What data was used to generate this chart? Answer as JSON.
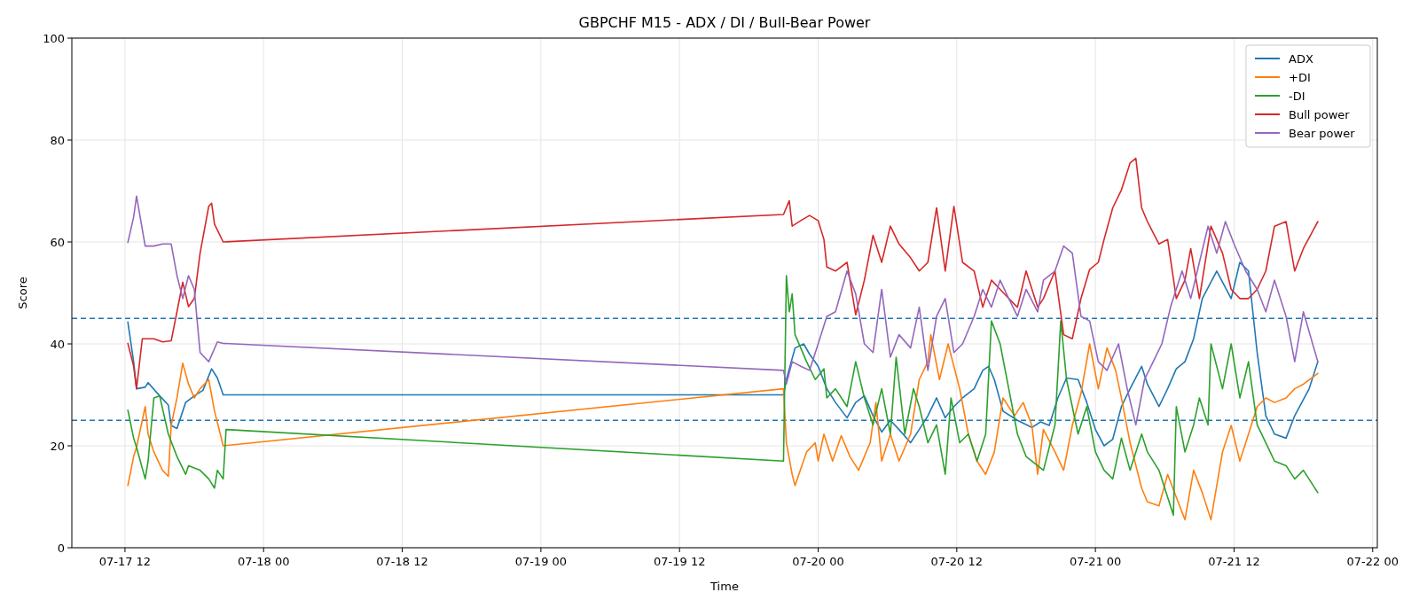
{
  "chart_data": {
    "type": "line",
    "title": "GBPCHF M15 - ADX / DI / Bull-Bear Power",
    "xlabel": "Time",
    "ylabel": "Score",
    "xlim": [
      "--07-17T07:24",
      "--07-22T00:24"
    ],
    "xticks": [
      {
        "value": "--07-17T12:00",
        "label": "07-17 12"
      },
      {
        "value": "--07-18T00:00",
        "label": "07-18 00"
      },
      {
        "value": "--07-18T12:00",
        "label": "07-18 12"
      },
      {
        "value": "--07-19T00:00",
        "label": "07-19 00"
      },
      {
        "value": "--07-19T12:00",
        "label": "07-19 12"
      },
      {
        "value": "--07-20T00:00",
        "label": "07-20 00"
      },
      {
        "value": "--07-20T12:00",
        "label": "07-20 12"
      },
      {
        "value": "--07-21T00:00",
        "label": "07-21 00"
      },
      {
        "value": "--07-21T12:00",
        "label": "07-21 12"
      },
      {
        "value": "--07-22T00:00",
        "label": "07-22 00"
      }
    ],
    "ylim": [
      0,
      100
    ],
    "yticks": [
      0,
      20,
      40,
      60,
      80,
      100
    ],
    "grid": true,
    "legend": "top right",
    "marker": "none",
    "line_style": "solid",
    "ref_lines": [
      {
        "axis": "y",
        "value": 45,
        "color": "#1f77b4",
        "line_style": "dashed"
      },
      {
        "axis": "y",
        "value": 25,
        "color": "#1f77b4",
        "line_style": "dashed"
      }
    ],
    "series": [
      {
        "name": "ADX",
        "color": "#1f77b4",
        "x": [
          "--07-17T12:15",
          "--07-17T12:45",
          "--07-17T13:00",
          "--07-17T13:45",
          "--07-17T14:00",
          "--07-17T15:00",
          "--07-17T15:45",
          "--07-17T16:00",
          "--07-17T16:30",
          "--07-17T17:15",
          "--07-17T18:00",
          "--07-17T18:45",
          "--07-17T19:30",
          "--07-17T20:00",
          "--07-17T20:30",
          "--07-19T21:00",
          "--07-19T21:15",
          "--07-19T22:00",
          "--07-19T22:45",
          "--07-19T23:15",
          "--07-20T00:00",
          "--07-20T00:45",
          "--07-20T01:30",
          "--07-20T02:30",
          "--07-20T03:15",
          "--07-20T04:00",
          "--07-20T04:45",
          "--07-20T05:30",
          "--07-20T06:15",
          "--07-20T07:00",
          "--07-20T08:00",
          "--07-20T08:45",
          "--07-20T09:30",
          "--07-20T10:15",
          "--07-20T11:00",
          "--07-20T11:45",
          "--07-20T12:30",
          "--07-20T13:30",
          "--07-20T14:15",
          "--07-20T14:45",
          "--07-20T15:15",
          "--07-20T16:00",
          "--07-20T17:15",
          "--07-20T18:30",
          "--07-20T19:15",
          "--07-20T20:00",
          "--07-20T20:45",
          "--07-20T21:30",
          "--07-20T22:30",
          "--07-20T23:15",
          "--07-21T00:00",
          "--07-21T00:45",
          "--07-21T01:30",
          "--07-21T02:15",
          "--07-21T03:00",
          "--07-21T04:00",
          "--07-21T04:30",
          "--07-21T05:30",
          "--07-21T06:15",
          "--07-21T07:00",
          "--07-21T07:45",
          "--07-21T08:30",
          "--07-21T09:15",
          "--07-21T10:30",
          "--07-21T11:45",
          "--07-21T12:30",
          "--07-21T13:15",
          "--07-21T14:00",
          "--07-21T14:45",
          "--07-21T15:30",
          "--07-21T16:30",
          "--07-21T17:15",
          "--07-21T18:30",
          "--07-21T19:15"
        ],
        "values": [
          44.3,
          36.5,
          31.2,
          31.5,
          32.4,
          29.8,
          28,
          24,
          23.4,
          28.5,
          29.8,
          30.9,
          35.1,
          33.3,
          30,
          30,
          33,
          39.2,
          40,
          38,
          35.6,
          31.2,
          28.5,
          25.5,
          28.5,
          29.8,
          25.9,
          22.7,
          25,
          23.2,
          20.6,
          23.2,
          25.9,
          29.4,
          25.5,
          27.7,
          29.4,
          31.2,
          34.8,
          35.6,
          33,
          26.8,
          25,
          23.6,
          24.7,
          24,
          29.4,
          33.3,
          33,
          28.5,
          23.2,
          20,
          21.3,
          27.7,
          31.2,
          35.6,
          32.1,
          27.7,
          31.2,
          35.1,
          36.5,
          41,
          48.9,
          54.3,
          48.9,
          56,
          54.3,
          38.3,
          25.9,
          22.3,
          21.5,
          25.9,
          31.2,
          36.5
        ]
      },
      {
        "name": "+DI",
        "color": "#ff7f0e",
        "x": [
          "--07-17T12:15",
          "--07-17T12:45",
          "--07-17T13:00",
          "--07-17T13:45",
          "--07-17T14:00",
          "--07-17T14:30",
          "--07-17T15:15",
          "--07-17T15:45",
          "--07-17T16:00",
          "--07-17T16:30",
          "--07-17T17:00",
          "--07-17T17:30",
          "--07-17T18:00",
          "--07-17T18:30",
          "--07-17T19:15",
          "--07-17T19:45",
          "--07-17T20:15",
          "--07-17T20:30",
          "--07-19T21:00",
          "--07-19T21:15",
          "--07-19T21:45",
          "--07-19T22:00",
          "--07-19T23:00",
          "--07-19T23:45",
          "--07-20T00:00",
          "--07-20T00:30",
          "--07-20T01:15",
          "--07-20T02:00",
          "--07-20T02:45",
          "--07-20T03:30",
          "--07-20T04:30",
          "--07-20T05:00",
          "--07-20T05:30",
          "--07-20T06:15",
          "--07-20T07:00",
          "--07-20T08:00",
          "--07-20T08:45",
          "--07-20T09:30",
          "--07-20T09:45",
          "--07-20T10:30",
          "--07-20T11:15",
          "--07-20T12:15",
          "--07-20T13:00",
          "--07-20T13:45",
          "--07-20T14:30",
          "--07-20T15:15",
          "--07-20T16:00",
          "--07-20T17:00",
          "--07-20T17:45",
          "--07-20T18:30",
          "--07-20T19:00",
          "--07-20T19:30",
          "--07-20T20:30",
          "--07-20T21:15",
          "--07-20T22:00",
          "--07-20T22:45",
          "--07-20T23:30",
          "--07-21T00:15",
          "--07-21T01:00",
          "--07-21T01:45",
          "--07-21T02:15",
          "--07-21T03:00",
          "--07-21T04:00",
          "--07-21T04:30",
          "--07-21T05:30",
          "--07-21T06:15",
          "--07-21T07:00",
          "--07-21T07:45",
          "--07-21T08:30",
          "--07-21T09:15",
          "--07-21T10:00",
          "--07-21T11:00",
          "--07-21T11:45",
          "--07-21T12:30",
          "--07-21T13:15",
          "--07-21T14:00",
          "--07-21T14:45",
          "--07-21T15:30",
          "--07-21T16:30",
          "--07-21T17:15",
          "--07-21T18:00",
          "--07-21T19:15"
        ],
        "values": [
          12.2,
          17.9,
          19.7,
          27.7,
          22.3,
          18.8,
          15.2,
          14,
          24,
          29.4,
          36.2,
          32.1,
          29.4,
          31.2,
          33,
          26.8,
          22.3,
          20,
          31.2,
          20.6,
          14.4,
          12.2,
          18.8,
          20.6,
          17,
          22.3,
          17,
          22,
          17.9,
          15.2,
          20.6,
          28.5,
          17,
          22.3,
          17,
          22.3,
          33,
          36.5,
          41.8,
          33,
          40,
          31.2,
          22.3,
          17,
          14.4,
          18.8,
          29.4,
          25.9,
          28.5,
          24,
          14.4,
          23.2,
          18.8,
          15.2,
          24,
          30.3,
          40,
          31.2,
          39.2,
          34.8,
          29.4,
          20.6,
          11.7,
          9,
          8.2,
          14.4,
          9.9,
          5.5,
          15.2,
          10.8,
          5.5,
          18.8,
          24,
          17,
          22.3,
          27.7,
          29.4,
          28.5,
          29.4,
          31.2,
          32.1,
          34.2
        ]
      },
      {
        "name": "-DI",
        "color": "#2ca02c",
        "x": [
          "--07-17T12:15",
          "--07-17T12:45",
          "--07-17T13:00",
          "--07-17T13:45",
          "--07-17T14:00",
          "--07-17T14:30",
          "--07-17T15:00",
          "--07-17T15:45",
          "--07-17T16:30",
          "--07-17T17:15",
          "--07-17T17:30",
          "--07-17T18:30",
          "--07-17T19:15",
          "--07-17T19:45",
          "--07-17T20:00",
          "--07-17T20:30",
          "--07-17T20:45",
          "--07-19T21:00",
          "--07-19T21:15",
          "--07-19T21:30",
          "--07-19T21:45",
          "--07-19T22:00",
          "--07-19T23:00",
          "--07-19T23:45",
          "--07-20T00:30",
          "--07-20T00:45",
          "--07-20T01:30",
          "--07-20T02:30",
          "--07-20T03:15",
          "--07-20T04:00",
          "--07-20T04:45",
          "--07-20T05:30",
          "--07-20T06:15",
          "--07-20T06:45",
          "--07-20T07:30",
          "--07-20T08:15",
          "--07-20T08:45",
          "--07-20T09:30",
          "--07-20T10:15",
          "--07-20T11:00",
          "--07-20T11:30",
          "--07-20T12:15",
          "--07-20T13:00",
          "--07-20T13:45",
          "--07-20T14:30",
          "--07-20T15:00",
          "--07-20T15:45",
          "--07-20T16:30",
          "--07-20T17:15",
          "--07-20T18:00",
          "--07-20T19:00",
          "--07-20T19:30",
          "--07-20T20:30",
          "--07-20T21:00",
          "--07-20T21:30",
          "--07-20T22:30",
          "--07-20T23:15",
          "--07-21T00:00",
          "--07-21T00:45",
          "--07-21T01:30",
          "--07-21T02:15",
          "--07-21T03:00",
          "--07-21T04:00",
          "--07-21T04:30",
          "--07-21T05:30",
          "--07-21T06:15",
          "--07-21T06:45",
          "--07-21T07:00",
          "--07-21T07:45",
          "--07-21T08:30",
          "--07-21T09:00",
          "--07-21T09:45",
          "--07-21T10:00",
          "--07-21T11:00",
          "--07-21T11:45",
          "--07-21T12:30",
          "--07-21T13:15",
          "--07-21T14:00",
          "--07-21T14:45",
          "--07-21T15:30",
          "--07-21T16:30",
          "--07-21T17:15",
          "--07-21T18:00",
          "--07-21T19:15"
        ],
        "values": [
          27,
          21.5,
          19.7,
          13.5,
          17,
          29.4,
          29.8,
          22.3,
          17.9,
          14.4,
          16.1,
          15.2,
          13.5,
          11.7,
          15.2,
          13.5,
          23.2,
          17,
          53.4,
          46.3,
          49.8,
          41.8,
          36.5,
          33,
          35.1,
          29.4,
          31.2,
          27.7,
          36.5,
          29.4,
          24.1,
          31.2,
          22.3,
          37.4,
          22.3,
          31.2,
          27.7,
          20.6,
          24.1,
          14.4,
          29.4,
          20.6,
          22.3,
          17,
          22.3,
          44.5,
          40,
          31.2,
          22.3,
          17.9,
          16.1,
          15.2,
          24.1,
          44.5,
          33,
          22.3,
          27.7,
          18.8,
          15.2,
          13.5,
          21.5,
          15.2,
          22.3,
          18.8,
          15.2,
          9.9,
          6.4,
          27.7,
          18.8,
          24.1,
          29.4,
          24.1,
          40,
          31.2,
          40,
          29.4,
          36.5,
          24.1,
          20.6,
          17,
          16.1,
          13.5,
          15.2,
          10.8
        ]
      },
      {
        "name": "Bull power",
        "color": "#d62728",
        "x": [
          "--07-17T12:15",
          "--07-17T12:45",
          "--07-17T13:00",
          "--07-17T13:30",
          "--07-17T14:30",
          "--07-17T15:15",
          "--07-17T16:00",
          "--07-17T16:30",
          "--07-17T17:00",
          "--07-17T17:30",
          "--07-17T18:00",
          "--07-17T18:30",
          "--07-17T19:15",
          "--07-17T19:30",
          "--07-17T19:45",
          "--07-17T20:30",
          "--07-19T21:00",
          "--07-19T21:30",
          "--07-19T21:45",
          "--07-19T22:30",
          "--07-19T23:15",
          "--07-20T00:00",
          "--07-20T00:30",
          "--07-20T00:45",
          "--07-20T01:30",
          "--07-20T02:30",
          "--07-20T03:15",
          "--07-20T04:00",
          "--07-20T04:45",
          "--07-20T05:30",
          "--07-20T06:15",
          "--07-20T07:00",
          "--07-20T08:00",
          "--07-20T08:45",
          "--07-20T09:30",
          "--07-20T10:15",
          "--07-20T11:00",
          "--07-20T11:45",
          "--07-20T12:30",
          "--07-20T13:30",
          "--07-20T14:15",
          "--07-20T15:00",
          "--07-20T15:45",
          "--07-20T16:30",
          "--07-20T17:15",
          "--07-20T18:00",
          "--07-20T19:00",
          "--07-20T19:30",
          "--07-20T20:30",
          "--07-20T21:15",
          "--07-20T22:00",
          "--07-20T22:45",
          "--07-20T23:30",
          "--07-21T00:15",
          "--07-21T00:45",
          "--07-21T01:30",
          "--07-21T02:15",
          "--07-21T03:00",
          "--07-21T03:30",
          "--07-21T04:00",
          "--07-21T04:30",
          "--07-21T05:30",
          "--07-21T06:15",
          "--07-21T07:00",
          "--07-21T07:45",
          "--07-21T08:15",
          "--07-21T09:00",
          "--07-21T10:00",
          "--07-21T11:00",
          "--07-21T11:45",
          "--07-21T12:30",
          "--07-21T13:15",
          "--07-21T14:00",
          "--07-21T14:45",
          "--07-21T15:30",
          "--07-21T16:30",
          "--07-21T17:15",
          "--07-21T18:00",
          "--07-21T19:15"
        ],
        "values": [
          40.1,
          35.6,
          31.2,
          41,
          41,
          40.4,
          40.6,
          46.3,
          52.1,
          47.3,
          48.9,
          57.8,
          67,
          67.6,
          63.5,
          60,
          65.4,
          68.1,
          63.1,
          64.2,
          65.2,
          64.2,
          60.5,
          55.1,
          54.3,
          56,
          45.7,
          52.5,
          61.3,
          56,
          63.1,
          59.6,
          56.9,
          54.3,
          56,
          66.7,
          54.3,
          67,
          56,
          54.3,
          47.2,
          52.5,
          50.7,
          48.9,
          47.2,
          54.3,
          47.2,
          48.9,
          54.3,
          41.8,
          41,
          48.9,
          54.6,
          56,
          60.5,
          66.7,
          70.2,
          75.5,
          76.4,
          66.7,
          64,
          59.6,
          60.5,
          48.9,
          52.5,
          58.7,
          48.9,
          63.1,
          57.8,
          50.7,
          48.9,
          48.9,
          50.7,
          54.3,
          63.1,
          64,
          54.3,
          58.7,
          64
        ]
      },
      {
        "name": "Bear power",
        "color": "#9467bd",
        "x": [
          "--07-17T12:15",
          "--07-17T12:45",
          "--07-17T13:00",
          "--07-17T13:45",
          "--07-17T14:30",
          "--07-17T15:15",
          "--07-17T16:00",
          "--07-17T16:30",
          "--07-17T17:00",
          "--07-17T17:30",
          "--07-17T18:00",
          "--07-17T18:30",
          "--07-17T19:15",
          "--07-17T20:00",
          "--07-17T20:30",
          "--07-19T21:00",
          "--07-19T21:15",
          "--07-19T21:45",
          "--07-19T22:30",
          "--07-19T23:15",
          "--07-20T00:00",
          "--07-20T00:45",
          "--07-20T01:30",
          "--07-20T02:30",
          "--07-20T03:15",
          "--07-20T04:00",
          "--07-20T04:45",
          "--07-20T05:30",
          "--07-20T06:15",
          "--07-20T07:00",
          "--07-20T08:00",
          "--07-20T08:45",
          "--07-20T09:30",
          "--07-20T10:15",
          "--07-20T11:00",
          "--07-20T11:45",
          "--07-20T12:30",
          "--07-20T13:30",
          "--07-20T14:15",
          "--07-20T15:00",
          "--07-20T15:45",
          "--07-20T16:30",
          "--07-20T17:15",
          "--07-20T18:00",
          "--07-20T19:00",
          "--07-20T19:30",
          "--07-20T20:30",
          "--07-20T21:15",
          "--07-20T22:00",
          "--07-20T22:45",
          "--07-20T23:30",
          "--07-21T00:15",
          "--07-21T01:00",
          "--07-21T02:00",
          "--07-21T02:45",
          "--07-21T03:30",
          "--07-21T04:15",
          "--07-21T05:00",
          "--07-21T05:45",
          "--07-21T06:30",
          "--07-21T07:30",
          "--07-21T08:15",
          "--07-21T09:00",
          "--07-21T09:45",
          "--07-21T10:30",
          "--07-21T11:15",
          "--07-21T12:00",
          "--07-21T13:00",
          "--07-21T14:00",
          "--07-21T14:45",
          "--07-21T15:30",
          "--07-21T16:30",
          "--07-21T17:15",
          "--07-21T18:00",
          "--07-21T19:15"
        ],
        "values": [
          59.9,
          64.9,
          69,
          59.2,
          59.2,
          59.6,
          59.6,
          53.4,
          48.9,
          53.4,
          50.7,
          38.3,
          36.5,
          40.4,
          40.1,
          34.8,
          32.1,
          36.5,
          35.6,
          34.8,
          40,
          45.4,
          46.3,
          54.3,
          49.8,
          40,
          38.3,
          50.7,
          37.4,
          41.8,
          39.2,
          47.2,
          34.8,
          45.4,
          48.9,
          38.3,
          40,
          45.4,
          50.7,
          47.2,
          52.5,
          48.9,
          45.4,
          50.7,
          46.3,
          52.5,
          54.3,
          59.2,
          57.8,
          45.4,
          44.5,
          36.5,
          34.8,
          40,
          31.2,
          24.1,
          33,
          36.5,
          40,
          47.2,
          54.3,
          48.9,
          56,
          63.1,
          57.8,
          64,
          59.6,
          54.3,
          50.7,
          46.3,
          52.5,
          45.4,
          36.5,
          46.3,
          36.5
        ]
      }
    ]
  }
}
